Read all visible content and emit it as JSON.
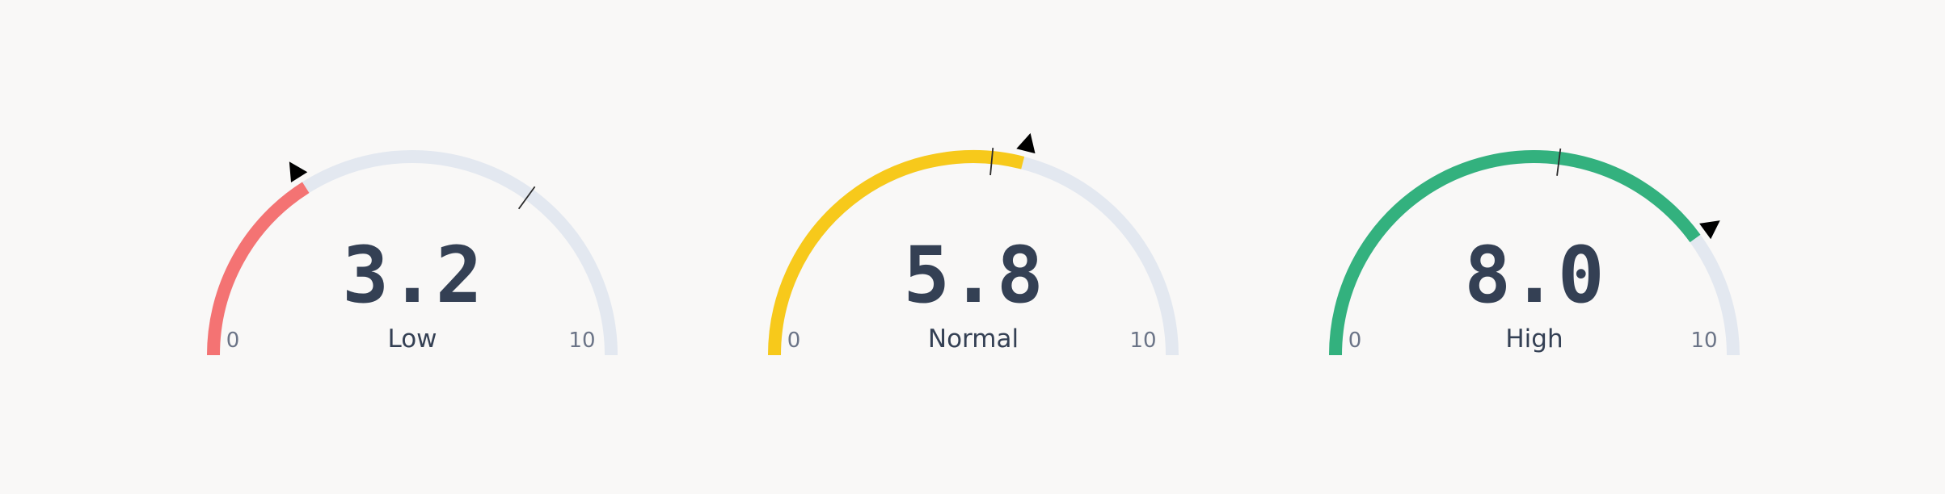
{
  "chart_data": [
    {
      "type": "gauge",
      "value": 3.2,
      "value_text": "3.2",
      "status": "Low",
      "range": [
        0,
        10
      ],
      "min_label": "0",
      "max_label": "10",
      "threshold": 7,
      "color": "#f47373"
    },
    {
      "type": "gauge",
      "value": 5.8,
      "value_text": "5.8",
      "status": "Normal",
      "range": [
        0,
        10
      ],
      "min_label": "0",
      "max_label": "10",
      "threshold": 5.3,
      "color": "#f7c91b"
    },
    {
      "type": "gauge",
      "value": 8.0,
      "value_text": "8.0",
      "status": "High",
      "range": [
        0,
        10
      ],
      "min_label": "0",
      "max_label": "10",
      "threshold": 5.4,
      "color": "#33b17e"
    }
  ],
  "colors": {
    "track": "#e3e8f0",
    "text": "#344054",
    "muted": "#6b7487",
    "marker": "#000000",
    "threshold": "#2b2b2b"
  }
}
